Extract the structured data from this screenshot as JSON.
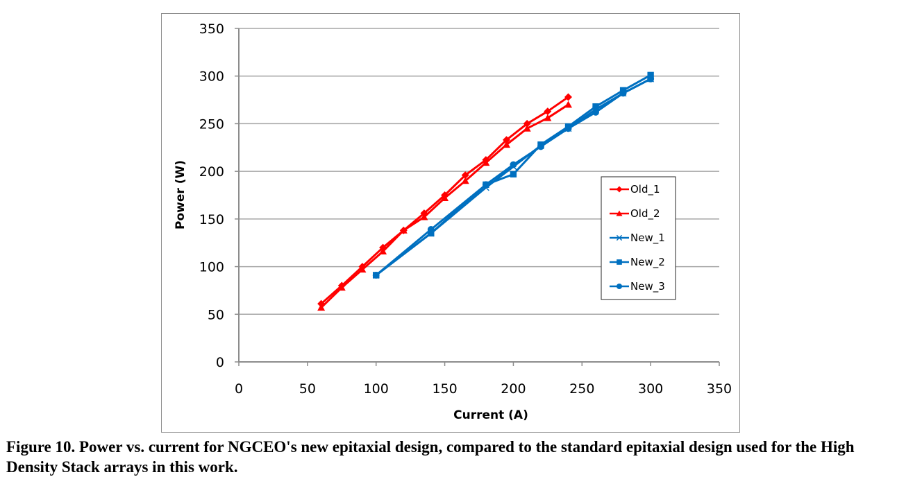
{
  "caption": "Figure 10.  Power vs. current for NGCEO's new epitaxial design, compared to the standard epitaxial design used for the High Density Stack arrays in this work.",
  "chart_data": {
    "type": "line",
    "title": "",
    "xlabel": "Current (A)",
    "ylabel": "Power (W)",
    "xlim": [
      0,
      350
    ],
    "ylim": [
      0,
      350
    ],
    "xticks": [
      0,
      50,
      100,
      150,
      200,
      250,
      300,
      350
    ],
    "yticks": [
      0,
      50,
      100,
      150,
      200,
      250,
      300,
      350
    ],
    "grid": "horizontal",
    "legend_position": "right-middle",
    "series": [
      {
        "name": "Old_1",
        "color": "#ff0000",
        "marker": "diamond",
        "x": [
          60,
          75,
          90,
          105,
          120,
          135,
          150,
          165,
          180,
          195,
          210,
          225,
          240
        ],
        "y": [
          61,
          80,
          100,
          120,
          138,
          156,
          175,
          196,
          212,
          233,
          250,
          263,
          278
        ]
      },
      {
        "name": "Old_2",
        "color": "#ff0000",
        "marker": "triangle",
        "x": [
          60,
          75,
          90,
          105,
          120,
          135,
          150,
          165,
          180,
          195,
          210,
          225,
          240
        ],
        "y": [
          57,
          78,
          97,
          116,
          138,
          152,
          172,
          190,
          209,
          228,
          245,
          256,
          270
        ]
      },
      {
        "name": "New_1",
        "color": "#0070c0",
        "marker": "x",
        "x": [
          100,
          140,
          180,
          200,
          220,
          240,
          260,
          280,
          300
        ],
        "y": [
          91,
          135,
          183,
          205,
          227,
          245,
          265,
          282,
          297
        ]
      },
      {
        "name": "New_2",
        "color": "#0070c0",
        "marker": "square",
        "x": [
          100,
          140,
          180,
          200,
          220,
          240,
          260,
          280,
          300
        ],
        "y": [
          91,
          135,
          186,
          197,
          228,
          247,
          268,
          285,
          301
        ]
      },
      {
        "name": "New_3",
        "color": "#0070c0",
        "marker": "circle",
        "x": [
          100,
          140,
          180,
          200,
          220,
          240,
          260,
          280,
          300
        ],
        "y": [
          91,
          139,
          186,
          207,
          226,
          245,
          262,
          282,
          297
        ]
      }
    ]
  }
}
